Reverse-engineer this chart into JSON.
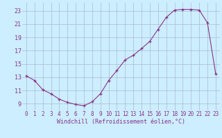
{
  "x": [
    0,
    1,
    2,
    3,
    4,
    5,
    6,
    7,
    8,
    9,
    10,
    11,
    12,
    13,
    14,
    15,
    16,
    17,
    18,
    19,
    20,
    21,
    22,
    23
  ],
  "y": [
    13.2,
    12.5,
    11.1,
    10.5,
    9.7,
    9.2,
    8.9,
    8.7,
    9.3,
    10.5,
    12.5,
    14.0,
    15.6,
    16.3,
    17.3,
    18.4,
    20.2,
    22.0,
    23.1,
    23.2,
    23.2,
    23.1,
    21.2,
    13.5
  ],
  "xlabel": "Windchill (Refroidissement éolien,°C)",
  "yticks": [
    9,
    11,
    13,
    15,
    17,
    19,
    21,
    23
  ],
  "xticks": [
    0,
    1,
    2,
    3,
    4,
    5,
    6,
    7,
    8,
    9,
    10,
    11,
    12,
    13,
    14,
    15,
    16,
    17,
    18,
    19,
    20,
    21,
    22,
    23
  ],
  "ylim": [
    8.0,
    24.2
  ],
  "xlim": [
    -0.5,
    23.5
  ],
  "line_color": "#883388",
  "marker": "+",
  "bg_color": "#cceeff",
  "grid_color": "#aabbcc",
  "xlabel_fontsize": 6.0,
  "tick_fontsize": 5.5
}
